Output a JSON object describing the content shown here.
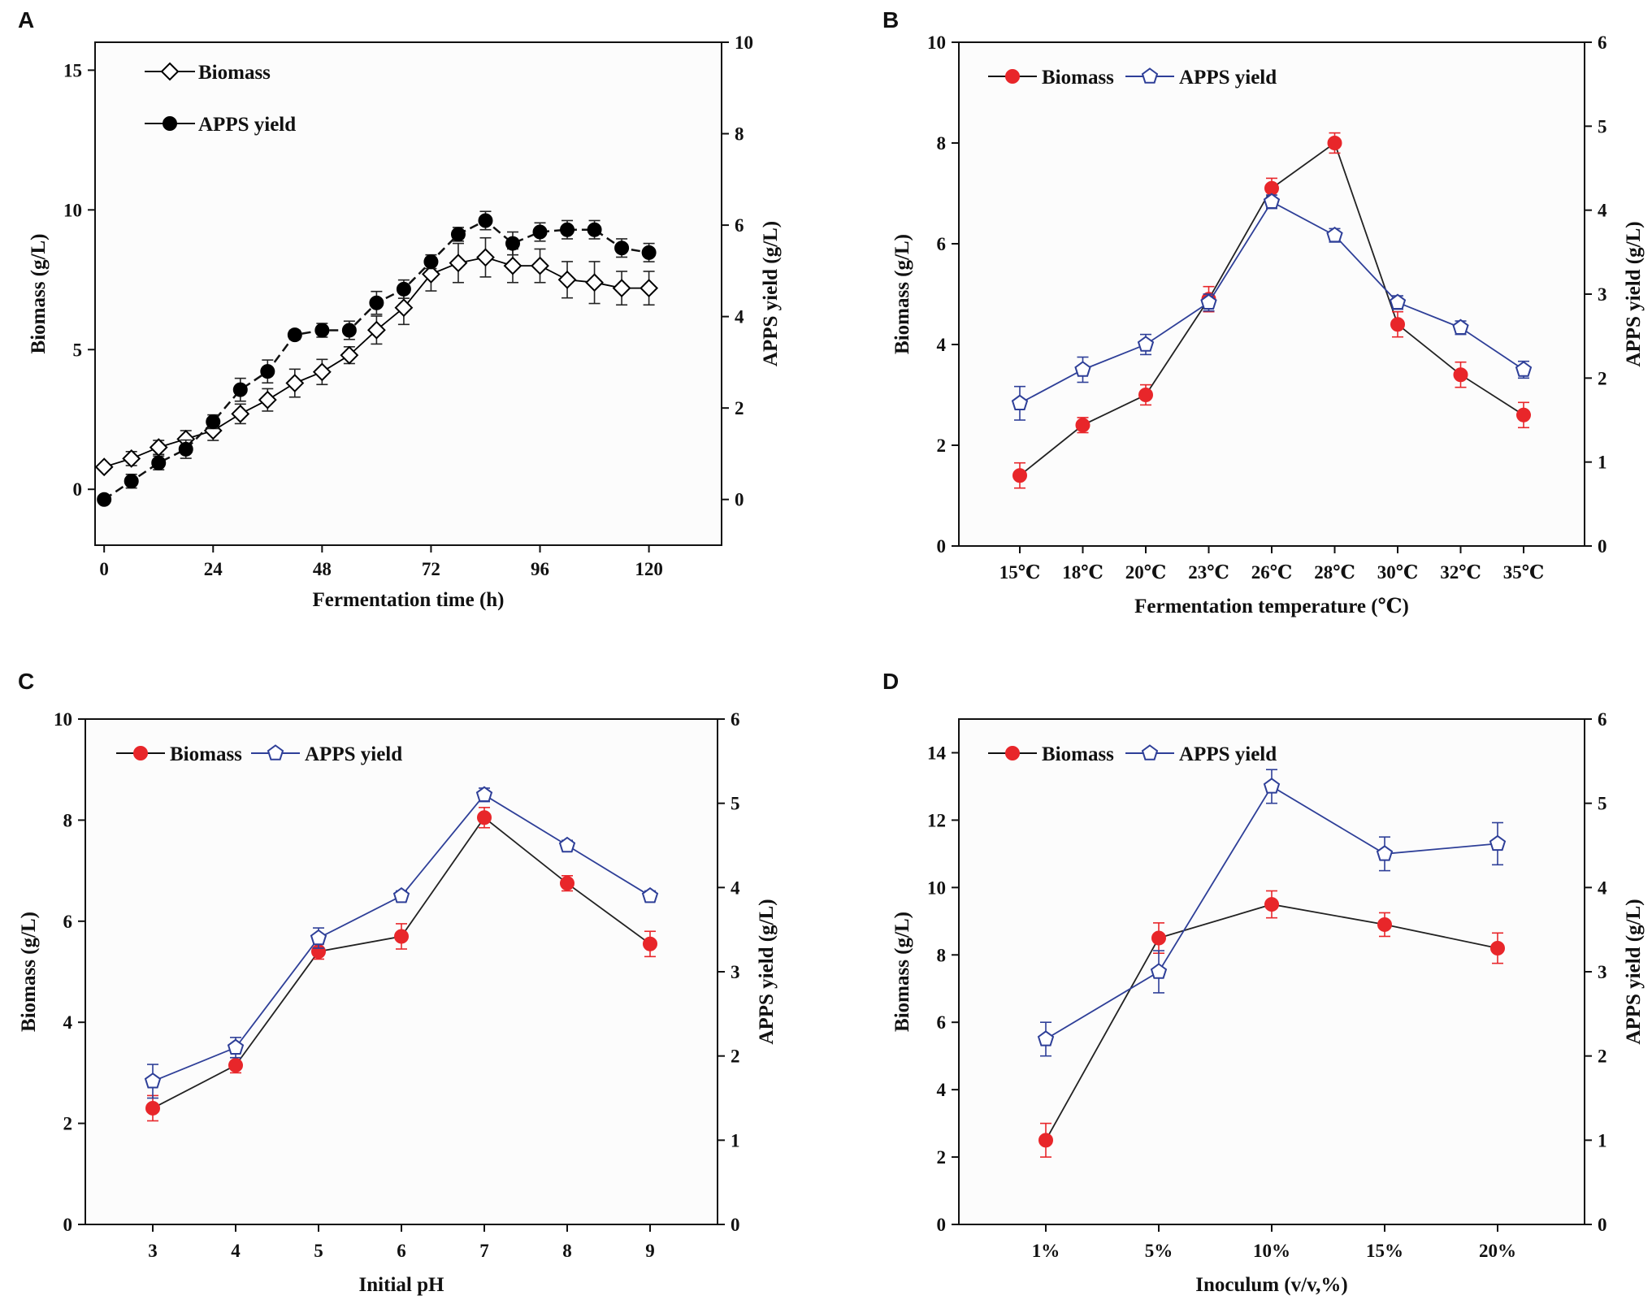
{
  "chart_data": [
    {
      "panel": "A",
      "type": "line",
      "xlabel": "Fermentation time (h)",
      "ylabel": "Biomass (g/L)",
      "y2label": "APPS yield (g/L)",
      "xlim": [
        -2,
        136
      ],
      "ylim": [
        -2,
        16
      ],
      "y2lim": [
        -1,
        10
      ],
      "xticks": [
        0,
        24,
        48,
        72,
        96,
        120
      ],
      "yticks": [
        0,
        5,
        10,
        15
      ],
      "y2ticks": [
        0,
        2,
        4,
        6,
        8,
        10
      ],
      "legend_position": "top-left",
      "series": [
        {
          "name": "Biomass",
          "axis": "left",
          "marker": "open-diamond",
          "line": "solid",
          "color": "#000000",
          "x": [
            0,
            6,
            12,
            18,
            24,
            30,
            36,
            42,
            48,
            54,
            60,
            66,
            72,
            78,
            84,
            90,
            96,
            102,
            108,
            114,
            120
          ],
          "values": [
            0.8,
            1.1,
            1.5,
            1.8,
            2.1,
            2.7,
            3.2,
            3.8,
            4.2,
            4.8,
            5.7,
            6.5,
            7.7,
            8.1,
            8.3,
            8.0,
            8.0,
            7.5,
            7.4,
            7.2,
            7.2
          ],
          "errors": [
            0.1,
            0.25,
            0.25,
            0.3,
            0.35,
            0.35,
            0.4,
            0.5,
            0.45,
            0.3,
            0.5,
            0.6,
            0.6,
            0.7,
            0.7,
            0.6,
            0.6,
            0.65,
            0.75,
            0.6,
            0.6
          ]
        },
        {
          "name": "APPS yield",
          "axis": "right",
          "marker": "filled-circle",
          "line": "dashed",
          "color": "#000000",
          "x": [
            0,
            6,
            12,
            18,
            24,
            30,
            36,
            42,
            48,
            54,
            60,
            66,
            72,
            78,
            84,
            90,
            96,
            102,
            108,
            114,
            120
          ],
          "values": [
            0.0,
            0.4,
            0.8,
            1.1,
            1.7,
            2.4,
            2.8,
            3.6,
            3.7,
            3.7,
            4.3,
            4.6,
            5.2,
            5.8,
            6.1,
            5.6,
            5.85,
            5.9,
            5.9,
            5.5,
            5.4
          ],
          "errors": [
            0.05,
            0.15,
            0.15,
            0.2,
            0.15,
            0.25,
            0.25,
            0.1,
            0.15,
            0.2,
            0.25,
            0.2,
            0.15,
            0.15,
            0.2,
            0.25,
            0.2,
            0.2,
            0.2,
            0.2,
            0.2
          ]
        }
      ]
    },
    {
      "panel": "B",
      "type": "line",
      "xlabel": "Fermentation temperature (℃)",
      "ylabel": "Biomass (g/L)",
      "y2label": "APPS yield (g/L)",
      "categories": [
        "15℃",
        "18℃",
        "20℃",
        "23℃",
        "26℃",
        "28℃",
        "30℃",
        "32℃",
        "35℃"
      ],
      "ylim": [
        0,
        10
      ],
      "y2lim": [
        0,
        6
      ],
      "yticks": [
        0,
        2,
        4,
        6,
        8,
        10
      ],
      "y2ticks": [
        0,
        1,
        2,
        3,
        4,
        5,
        6
      ],
      "legend_position": "top-left",
      "series": [
        {
          "name": "Biomass",
          "axis": "left",
          "marker": "filled-circle",
          "line": "solid",
          "color": "#e8262a",
          "values": [
            1.4,
            2.4,
            3.0,
            4.9,
            7.1,
            8.0,
            4.4,
            3.4,
            2.6
          ],
          "errors": [
            0.25,
            0.15,
            0.2,
            0.25,
            0.2,
            0.2,
            0.25,
            0.25,
            0.25
          ]
        },
        {
          "name": "APPS yield",
          "axis": "right",
          "marker": "open-pentagon",
          "line": "solid",
          "color": "#2e3f98",
          "values": [
            1.7,
            2.1,
            2.4,
            2.9,
            4.1,
            3.7,
            2.9,
            2.6,
            2.1
          ],
          "errors": [
            0.2,
            0.15,
            0.12,
            0.1,
            0.08,
            0.08,
            0.08,
            0.08,
            0.1
          ]
        }
      ]
    },
    {
      "panel": "C",
      "type": "line",
      "xlabel": "Initial pH",
      "ylabel": "Biomass (g/L)",
      "y2label": "APPS yield (g/L)",
      "categories": [
        "3",
        "4",
        "5",
        "6",
        "7",
        "8",
        "9"
      ],
      "ylim": [
        0,
        10
      ],
      "y2lim": [
        0,
        6
      ],
      "yticks": [
        0,
        2,
        4,
        6,
        8,
        10
      ],
      "y2ticks": [
        0,
        1,
        2,
        3,
        4,
        5,
        6
      ],
      "legend_position": "top-left",
      "series": [
        {
          "name": "Biomass",
          "axis": "left",
          "marker": "filled-circle",
          "line": "solid",
          "color": "#e8262a",
          "values": [
            2.3,
            3.15,
            5.4,
            5.7,
            8.05,
            6.75,
            5.55
          ],
          "errors": [
            0.25,
            0.15,
            0.15,
            0.25,
            0.2,
            0.15,
            0.25
          ]
        },
        {
          "name": "APPS yield",
          "axis": "right",
          "marker": "open-pentagon",
          "line": "solid",
          "color": "#2e3f98",
          "values": [
            1.7,
            2.1,
            3.4,
            3.9,
            5.1,
            4.5,
            3.9
          ],
          "errors": [
            0.2,
            0.12,
            0.12,
            0.06,
            0.08,
            0.06,
            0.06
          ]
        }
      ]
    },
    {
      "panel": "D",
      "type": "line",
      "xlabel": "Inoculum (v/v,%)",
      "ylabel": "Biomass (g/L)",
      "y2label": "APPS yield (g/L)",
      "categories": [
        "1%",
        "5%",
        "10%",
        "15%",
        "20%"
      ],
      "ylim": [
        0,
        15
      ],
      "y2lim": [
        0,
        6
      ],
      "yticks": [
        0,
        2,
        4,
        6,
        8,
        10,
        12,
        14
      ],
      "y2ticks": [
        0,
        1,
        2,
        3,
        4,
        5,
        6
      ],
      "legend_position": "top-left",
      "series": [
        {
          "name": "Biomass",
          "axis": "left",
          "marker": "filled-circle",
          "line": "solid",
          "color": "#e8262a",
          "values": [
            2.5,
            8.5,
            9.5,
            8.9,
            8.2
          ],
          "errors": [
            0.5,
            0.45,
            0.4,
            0.35,
            0.45
          ]
        },
        {
          "name": "APPS yield",
          "axis": "right",
          "marker": "open-pentagon",
          "line": "solid",
          "color": "#2e3f98",
          "values": [
            2.2,
            3.0,
            5.2,
            4.4,
            4.52
          ],
          "errors": [
            0.2,
            0.25,
            0.2,
            0.2,
            0.25
          ]
        }
      ]
    }
  ]
}
